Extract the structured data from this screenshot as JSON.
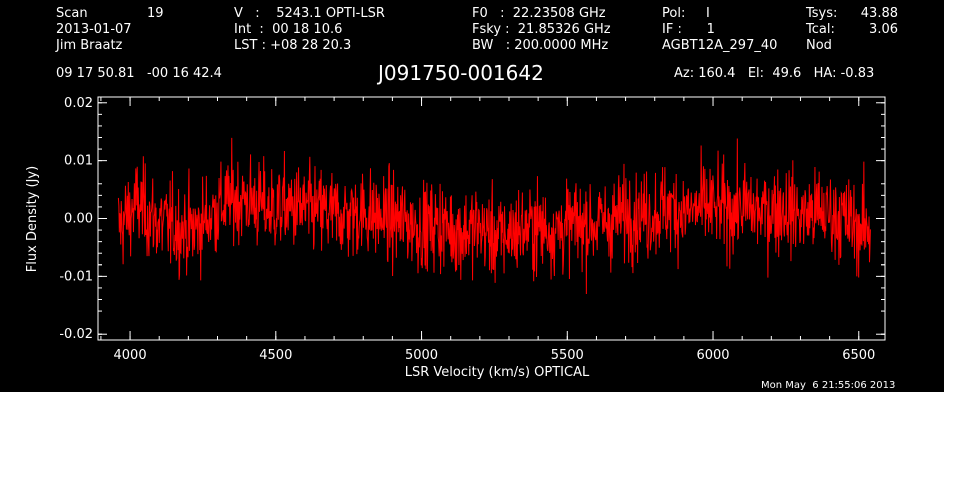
{
  "header": {
    "col1": {
      "scan_label": "Scan",
      "scan_value": "19",
      "date": "2013-01-07",
      "observer": "Jim Braatz"
    },
    "col2": {
      "v_line": "V   :    5243.1 OPTI-LSR",
      "int_line": "Int  :  00 18 10.6",
      "lst_line": "LST : +08 28 20.3"
    },
    "col3": {
      "f0_line": "F0   :  22.23508 GHz",
      "fsky_line": "Fsky :  21.85326 GHz",
      "bw_line": "BW   : 200.0000 MHz"
    },
    "col4": {
      "pol_line": "Pol:     I",
      "if_line": "IF :      1",
      "project": "AGBT12A_297_40"
    },
    "col5": {
      "tsys_label": "Tsys:",
      "tsys_value": "43.88",
      "tcal_label": "Tcal:",
      "tcal_value": "3.06",
      "mode": "Nod"
    },
    "coords": "09 17 50.81   -00 16 42.4",
    "source": "J091750-001642",
    "az_el_ha": "Az: 160.4   El:  49.6   HA: -0.83"
  },
  "timestamp": "Mon May  6 21:55:06 2013",
  "colors": {
    "background": "#000000",
    "axes": "#ffffff",
    "trace": "#ff0000",
    "page": "#ffffff"
  },
  "chart_data": {
    "type": "line",
    "xlabel": "LSR Velocity (km/s) OPTICAL",
    "ylabel": "Flux Density (Jy)",
    "xlim": [
      3890,
      6590
    ],
    "ylim": [
      -0.021,
      0.021
    ],
    "x_ticks": [
      4000,
      4500,
      5000,
      5500,
      6000,
      6500
    ],
    "x_tick_labels": [
      "4000",
      "4500",
      "5000",
      "5500",
      "6000",
      "6500"
    ],
    "y_ticks": [
      -0.02,
      -0.01,
      0.0,
      0.01,
      0.02
    ],
    "y_tick_labels": [
      "-0.02",
      "-0.01",
      "0.00",
      "0.01",
      "0.02"
    ],
    "grid": false,
    "series": [
      {
        "x": [
          3960,
          4025,
          4090,
          4155,
          4220,
          4285,
          4350,
          4415,
          4480,
          4545,
          4610,
          4675,
          4740,
          4805,
          4870,
          4935,
          5000,
          5065,
          5130,
          5195,
          5260,
          5325,
          5390,
          5455,
          5520,
          5585,
          5650,
          5715,
          5780,
          5845,
          5910,
          5975,
          6040,
          6105,
          6170,
          6235,
          6300,
          6365,
          6430,
          6495,
          6540
        ],
        "y": [
          -0.0015,
          0.0025,
          -0.0005,
          -0.0015,
          -0.002,
          0.001,
          0.0035,
          0.003,
          0.0015,
          0.002,
          0.0015,
          0.001,
          0.0005,
          0.001,
          0.0,
          -0.0005,
          -0.0015,
          -0.001,
          -0.0025,
          -0.0015,
          -0.0035,
          -0.002,
          -0.0015,
          -0.002,
          -0.001,
          -0.001,
          -0.0005,
          0.001,
          0.0005,
          0.002,
          0.001,
          0.002,
          0.0015,
          0.002,
          0.001,
          0.002,
          0.0005,
          0.001,
          0.0005,
          -0.0015,
          -0.002
        ],
        "noise_rms": 0.0038
      }
    ]
  }
}
